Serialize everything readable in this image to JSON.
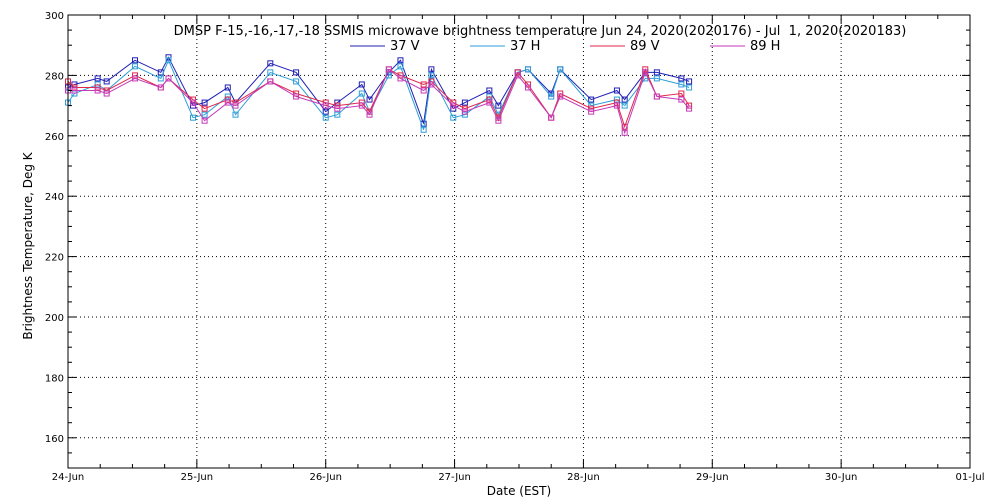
{
  "chart_data": {
    "type": "line",
    "title": "DMSP F-15,-16,-17,-18 SSMIS microwave brightness temperature Jun 24, 2020(2020176) - Jul  1, 2020(2020183)",
    "xlabel": "Date (EST)",
    "ylabel": "Brightness Temperature, Deg K",
    "xlim": [
      0,
      7
    ],
    "ylim": [
      150,
      300
    ],
    "x_tick_values": [
      0,
      1,
      2,
      3,
      4,
      5,
      6,
      7
    ],
    "x_tick_labels": [
      "24-Jun",
      "25-Jun",
      "26-Jun",
      "27-Jun",
      "28-Jun",
      "29-Jun",
      "30-Jun",
      "01-Jul"
    ],
    "y_tick_values": [
      160,
      180,
      200,
      220,
      240,
      260,
      280,
      300
    ],
    "y_tick_labels": [
      "160",
      "180",
      "200",
      "220",
      "240",
      "260",
      "280",
      "300"
    ],
    "grid": true,
    "legend_position": "top-center",
    "series": [
      {
        "name": "37 V",
        "color": "#1f1fb4",
        "points": [
          [
            0.0,
            276
          ],
          [
            0.05,
            277
          ],
          [
            0.23,
            279
          ],
          [
            0.3,
            278
          ],
          [
            0.52,
            285
          ],
          [
            0.72,
            281
          ],
          [
            0.78,
            286
          ],
          [
            0.97,
            270
          ],
          [
            1.06,
            271
          ],
          [
            1.24,
            276
          ],
          [
            1.3,
            271
          ],
          [
            1.57,
            284
          ],
          [
            1.77,
            281
          ],
          [
            2.0,
            268
          ],
          [
            2.09,
            271
          ],
          [
            2.28,
            277
          ],
          [
            2.34,
            272
          ],
          [
            2.49,
            281
          ],
          [
            2.58,
            285
          ],
          [
            2.76,
            264
          ],
          [
            2.82,
            282
          ],
          [
            2.99,
            269
          ],
          [
            3.08,
            271
          ],
          [
            3.27,
            275
          ],
          [
            3.34,
            270
          ],
          [
            3.49,
            281
          ],
          [
            3.57,
            282
          ],
          [
            3.75,
            274
          ],
          [
            3.82,
            282
          ],
          [
            4.06,
            272
          ],
          [
            4.26,
            275
          ],
          [
            4.32,
            272
          ],
          [
            4.48,
            281
          ],
          [
            4.57,
            281
          ],
          [
            4.76,
            279
          ],
          [
            4.82,
            278
          ]
        ]
      },
      {
        "name": "37 H",
        "color": "#2e9ed8",
        "points": [
          [
            0.0,
            271
          ],
          [
            0.05,
            274
          ],
          [
            0.23,
            277
          ],
          [
            0.3,
            275
          ],
          [
            0.52,
            283
          ],
          [
            0.72,
            279
          ],
          [
            0.78,
            285
          ],
          [
            0.97,
            266
          ],
          [
            1.06,
            267
          ],
          [
            1.24,
            273
          ],
          [
            1.3,
            267
          ],
          [
            1.57,
            281
          ],
          [
            1.77,
            278
          ],
          [
            2.0,
            266
          ],
          [
            2.09,
            267
          ],
          [
            2.28,
            274
          ],
          [
            2.34,
            268
          ],
          [
            2.49,
            280
          ],
          [
            2.58,
            283
          ],
          [
            2.76,
            262
          ],
          [
            2.82,
            280
          ],
          [
            2.99,
            266
          ],
          [
            3.08,
            267
          ],
          [
            3.27,
            273
          ],
          [
            3.34,
            267
          ],
          [
            3.49,
            281
          ],
          [
            3.57,
            282
          ],
          [
            3.75,
            273
          ],
          [
            3.82,
            282
          ],
          [
            4.06,
            270
          ],
          [
            4.26,
            272
          ],
          [
            4.32,
            270
          ],
          [
            4.48,
            279
          ],
          [
            4.57,
            279
          ],
          [
            4.76,
            277
          ],
          [
            4.82,
            276
          ]
        ]
      },
      {
        "name": "89 V",
        "color": "#e0264a",
        "points": [
          [
            0.0,
            278
          ],
          [
            0.05,
            276
          ],
          [
            0.23,
            276
          ],
          [
            0.3,
            275
          ],
          [
            0.52,
            280
          ],
          [
            0.72,
            276
          ],
          [
            0.78,
            279
          ],
          [
            0.97,
            272
          ],
          [
            1.06,
            269
          ],
          [
            1.24,
            272
          ],
          [
            1.3,
            271
          ],
          [
            1.57,
            278
          ],
          [
            1.77,
            274
          ],
          [
            2.0,
            271
          ],
          [
            2.09,
            270
          ],
          [
            2.28,
            271
          ],
          [
            2.34,
            268
          ],
          [
            2.49,
            282
          ],
          [
            2.58,
            280
          ],
          [
            2.76,
            277
          ],
          [
            2.82,
            278
          ],
          [
            2.99,
            271
          ],
          [
            3.08,
            269
          ],
          [
            3.27,
            272
          ],
          [
            3.34,
            266
          ],
          [
            3.49,
            281
          ],
          [
            3.57,
            277
          ],
          [
            3.75,
            266
          ],
          [
            3.82,
            274
          ],
          [
            4.06,
            269
          ],
          [
            4.26,
            271
          ],
          [
            4.32,
            263
          ],
          [
            4.48,
            282
          ],
          [
            4.57,
            273
          ],
          [
            4.76,
            274
          ],
          [
            4.82,
            270
          ]
        ]
      },
      {
        "name": "89 H",
        "color": "#c43ab8",
        "points": [
          [
            0.0,
            275
          ],
          [
            0.05,
            275
          ],
          [
            0.23,
            275
          ],
          [
            0.3,
            274
          ],
          [
            0.52,
            279
          ],
          [
            0.72,
            276
          ],
          [
            0.78,
            279
          ],
          [
            0.97,
            271
          ],
          [
            1.06,
            265
          ],
          [
            1.24,
            271
          ],
          [
            1.3,
            270
          ],
          [
            1.57,
            278
          ],
          [
            1.77,
            273
          ],
          [
            2.0,
            270
          ],
          [
            2.09,
            269
          ],
          [
            2.28,
            270
          ],
          [
            2.34,
            267
          ],
          [
            2.49,
            282
          ],
          [
            2.58,
            279
          ],
          [
            2.76,
            275
          ],
          [
            2.82,
            277
          ],
          [
            2.99,
            270
          ],
          [
            3.08,
            268
          ],
          [
            3.27,
            271
          ],
          [
            3.34,
            265
          ],
          [
            3.49,
            280
          ],
          [
            3.57,
            276
          ],
          [
            3.75,
            266
          ],
          [
            3.82,
            273
          ],
          [
            4.06,
            268
          ],
          [
            4.26,
            270
          ],
          [
            4.32,
            261
          ],
          [
            4.48,
            281
          ],
          [
            4.57,
            273
          ],
          [
            4.76,
            272
          ],
          [
            4.82,
            269
          ]
        ]
      }
    ]
  }
}
